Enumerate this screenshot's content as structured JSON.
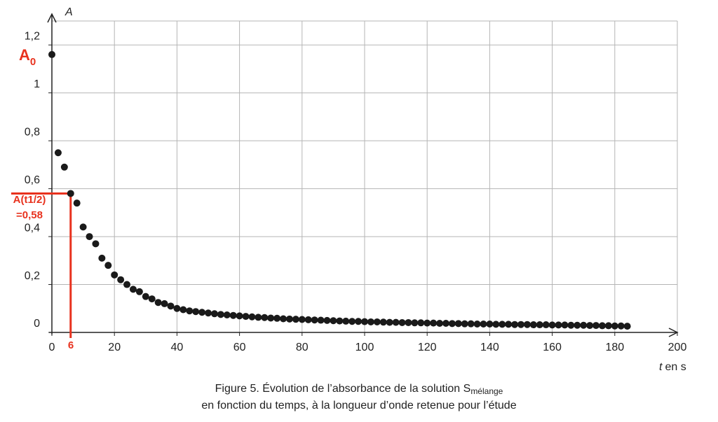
{
  "chart_data": {
    "type": "scatter",
    "y_axis_label": "A",
    "x_axis_label": {
      "var": "t",
      "unit": "en s"
    },
    "caption": {
      "line1": "Figure 5. Évolution de l’absorbance de la solution S",
      "line1_sub": "mélange",
      "line2": "en fonction du temps, à la longueur d’onde retenue pour l’étude"
    },
    "a0_label": {
      "main": "A",
      "sub": "0"
    },
    "half_life": {
      "x": 6,
      "y": 0.58,
      "x_label": "6",
      "y_label": [
        "A(t1/2)",
        "=0,58"
      ],
      "color": "#e8321e"
    },
    "color": "#1a1a1a",
    "x": [
      0,
      2,
      4,
      6,
      8,
      10,
      12,
      14,
      16,
      18,
      20,
      22,
      24,
      26,
      28,
      30,
      32,
      34,
      36,
      38,
      40,
      42,
      44,
      46,
      48,
      50,
      52,
      54,
      56,
      58,
      60,
      62,
      64,
      66,
      68,
      70,
      72,
      74,
      76,
      78,
      80,
      82,
      84,
      86,
      88,
      90,
      92,
      94,
      96,
      98,
      100,
      102,
      104,
      106,
      108,
      110,
      112,
      114,
      116,
      118,
      120,
      122,
      124,
      126,
      128,
      130,
      132,
      134,
      136,
      138,
      140,
      142,
      144,
      146,
      148,
      150,
      152,
      154,
      156,
      158,
      160,
      162,
      164,
      166,
      168,
      170,
      172,
      174,
      176,
      178,
      180,
      182,
      184
    ],
    "values": [
      1.16,
      0.75,
      0.69,
      0.58,
      0.54,
      0.44,
      0.4,
      0.37,
      0.31,
      0.28,
      0.24,
      0.22,
      0.2,
      0.18,
      0.17,
      0.15,
      0.14,
      0.125,
      0.12,
      0.11,
      0.1,
      0.095,
      0.09,
      0.087,
      0.084,
      0.081,
      0.078,
      0.075,
      0.073,
      0.071,
      0.069,
      0.067,
      0.065,
      0.063,
      0.062,
      0.06,
      0.059,
      0.057,
      0.056,
      0.055,
      0.054,
      0.053,
      0.052,
      0.051,
      0.05,
      0.049,
      0.048,
      0.047,
      0.046,
      0.046,
      0.045,
      0.044,
      0.044,
      0.043,
      0.042,
      0.042,
      0.041,
      0.041,
      0.04,
      0.04,
      0.039,
      0.039,
      0.038,
      0.038,
      0.037,
      0.037,
      0.036,
      0.036,
      0.035,
      0.035,
      0.035,
      0.034,
      0.034,
      0.034,
      0.033,
      0.033,
      0.033,
      0.032,
      0.032,
      0.032,
      0.031,
      0.031,
      0.031,
      0.03,
      0.03,
      0.03,
      0.029,
      0.029,
      0.028,
      0.028,
      0.027,
      0.027,
      0.026
    ],
    "xlim": [
      0,
      200
    ],
    "ylim": [
      0,
      1.3
    ],
    "xticks": [
      0,
      20,
      40,
      60,
      80,
      100,
      120,
      140,
      160,
      180,
      200
    ],
    "yticks": [
      0,
      {
        "value": 0.2,
        "label": "0,2"
      },
      {
        "value": 0.4,
        "label": "0,4"
      },
      {
        "value": 0.6,
        "label": "0,6"
      },
      {
        "value": 0.8,
        "label": "0,8"
      },
      1,
      {
        "value": 1.2,
        "label": "1,2"
      }
    ],
    "grid": true
  }
}
